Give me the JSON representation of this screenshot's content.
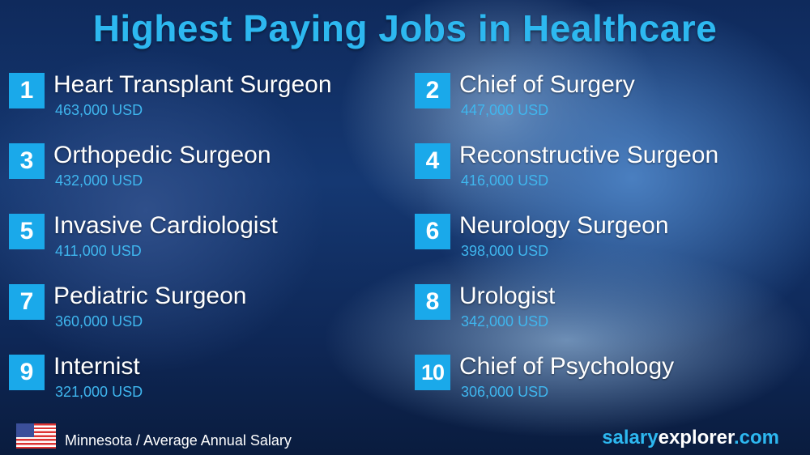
{
  "title": "Highest Paying Jobs in Healthcare",
  "jobs": [
    {
      "rank": "1",
      "name": "Heart Transplant Surgeon",
      "salary": "463,000 USD"
    },
    {
      "rank": "2",
      "name": "Chief of Surgery",
      "salary": "447,000 USD"
    },
    {
      "rank": "3",
      "name": "Orthopedic Surgeon",
      "salary": "432,000 USD"
    },
    {
      "rank": "4",
      "name": "Reconstructive Surgeon",
      "salary": "416,000 USD"
    },
    {
      "rank": "5",
      "name": "Invasive Cardiologist",
      "salary": "411,000 USD"
    },
    {
      "rank": "6",
      "name": "Neurology Surgeon",
      "salary": "398,000 USD"
    },
    {
      "rank": "7",
      "name": "Pediatric Surgeon",
      "salary": "360,000 USD"
    },
    {
      "rank": "8",
      "name": "Urologist",
      "salary": "342,000 USD"
    },
    {
      "rank": "9",
      "name": "Internist",
      "salary": "321,000 USD"
    },
    {
      "rank": "10",
      "name": "Chief of Psychology",
      "salary": "306,000 USD"
    }
  ],
  "footer": {
    "location": "Minnesota / Average Annual Salary",
    "flag_icon": "us-flag-icon",
    "brand_part1": "salary",
    "brand_part2": "explorer",
    "brand_part3": ".com"
  },
  "colors": {
    "accent": "#1aa9ea",
    "background": "#153872"
  }
}
